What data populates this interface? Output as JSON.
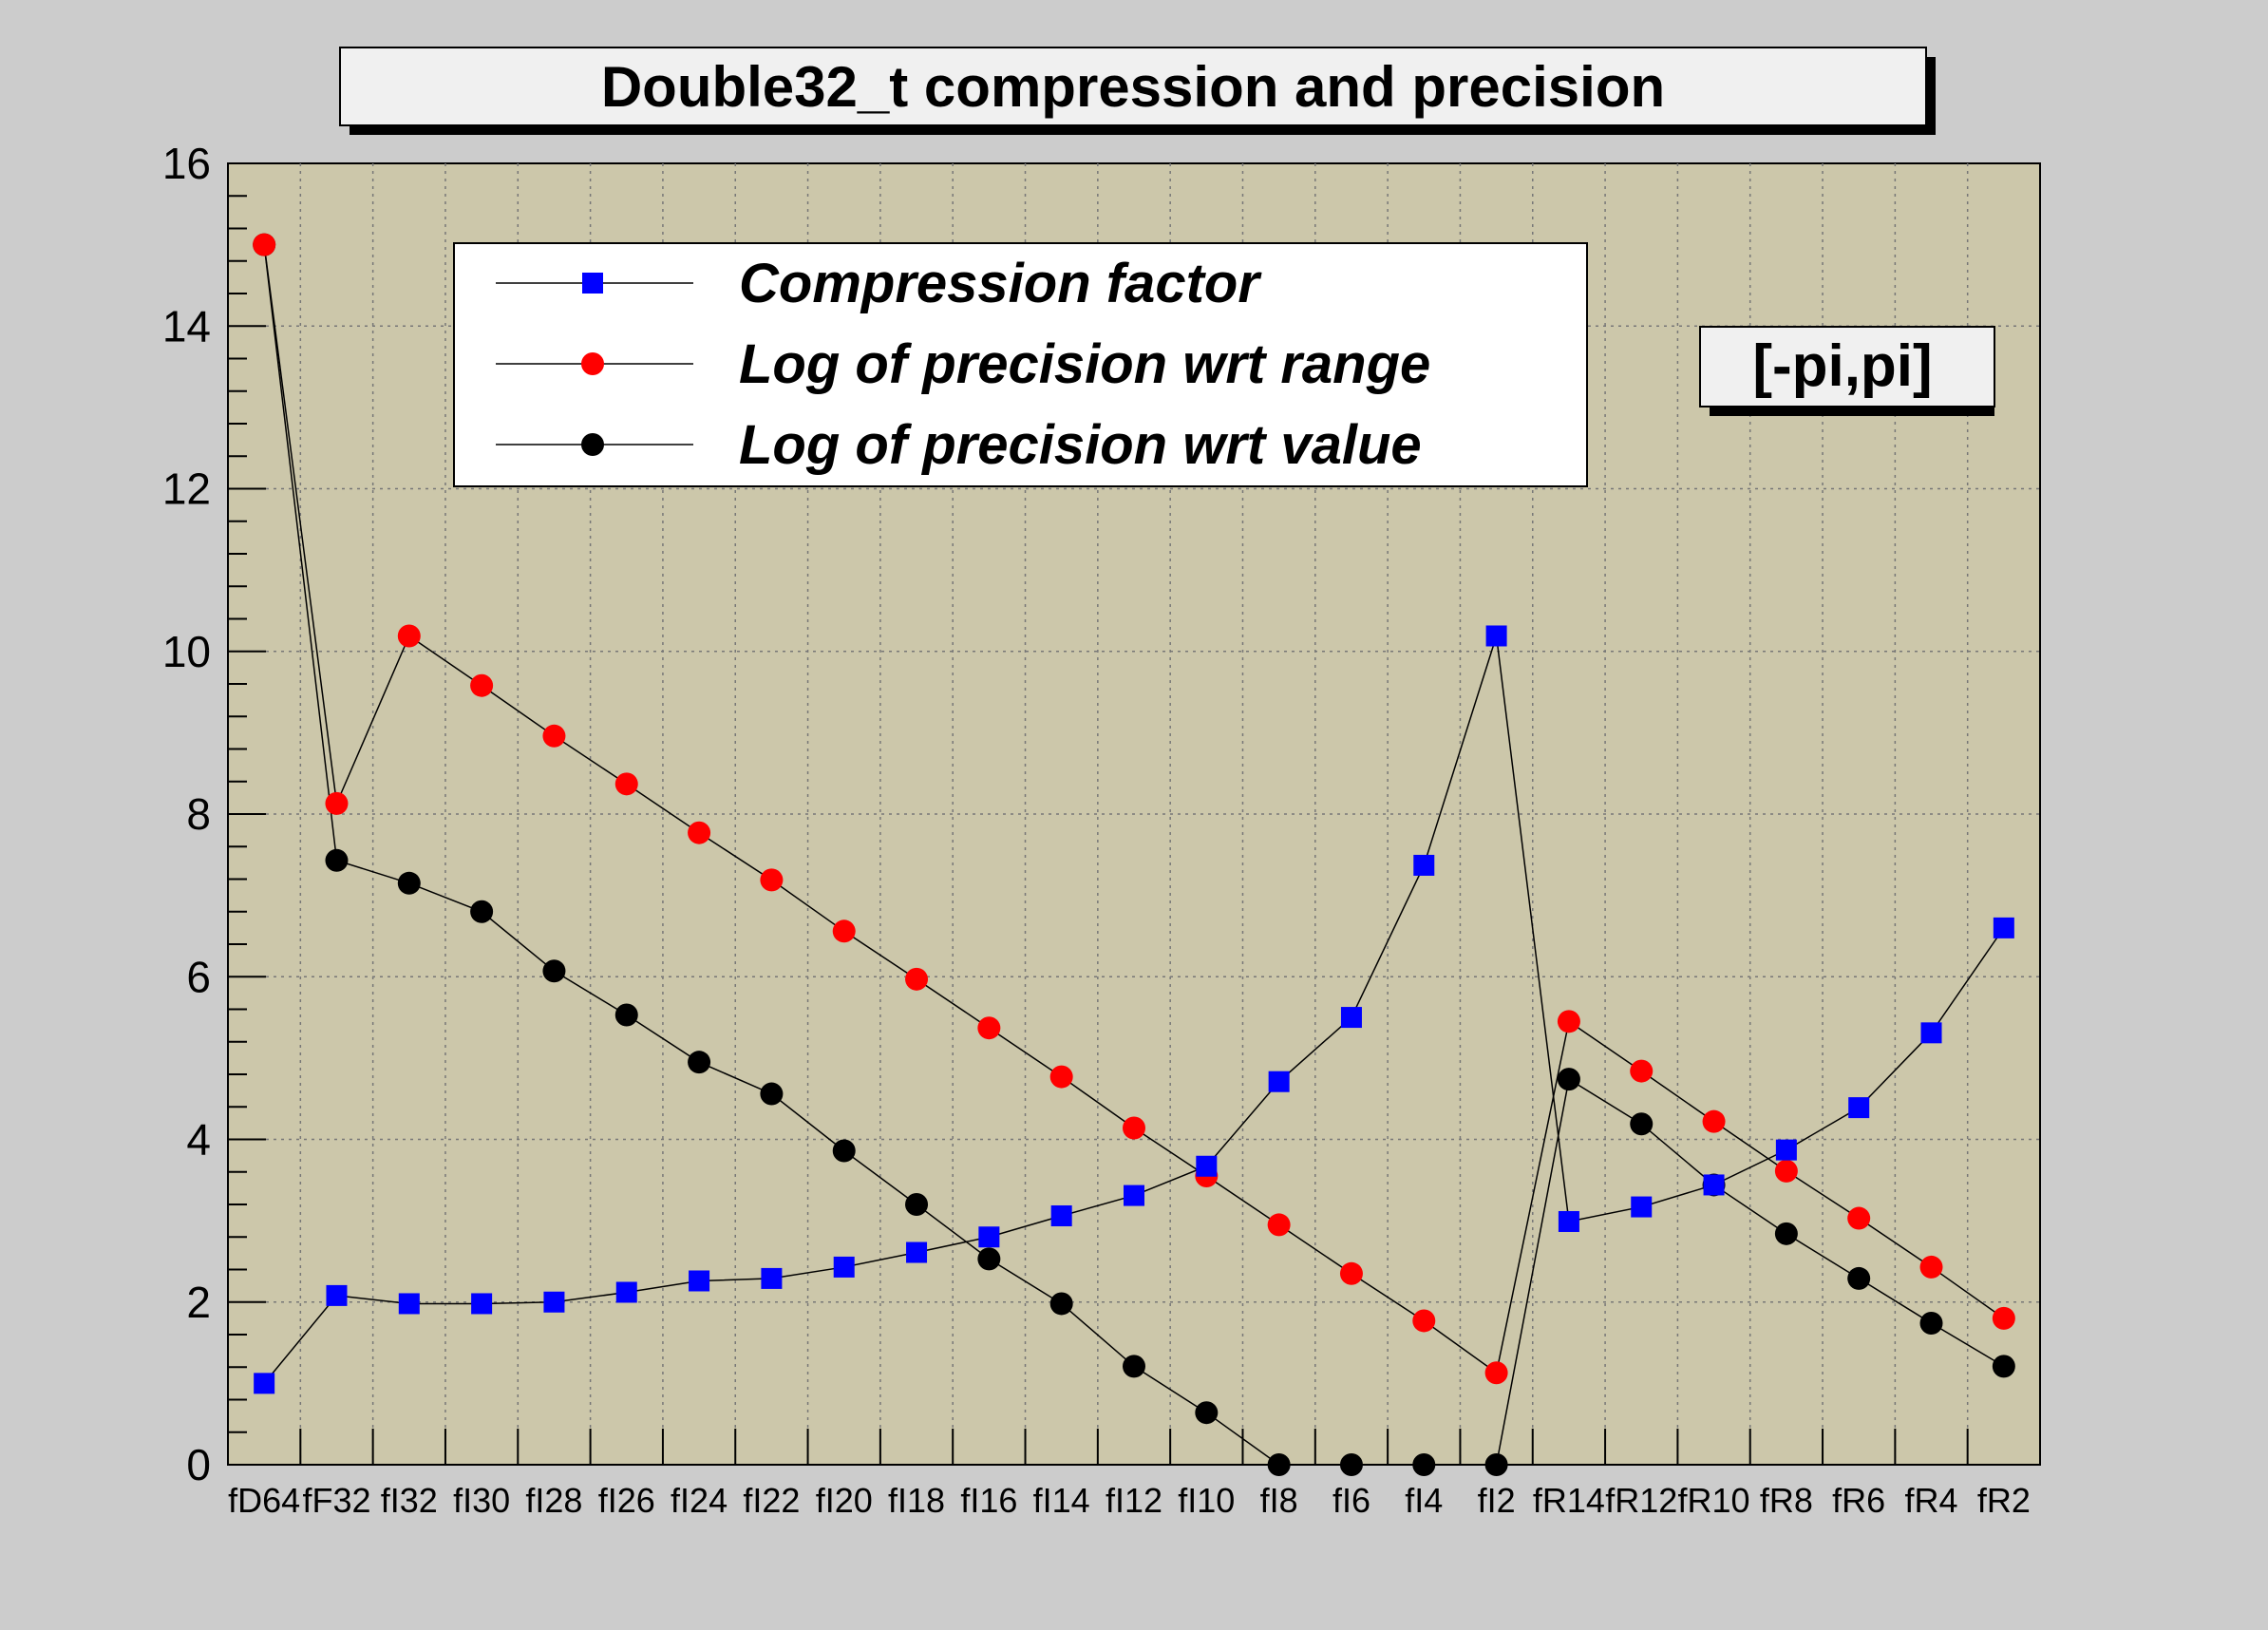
{
  "title": "Double32_t compression and precision",
  "range_label": "[-pi,pi]",
  "colors": {
    "canvas_bg": "#cccccc",
    "plot_bg": "#ccc7aa",
    "compression": "#0000ff",
    "range": "#ff0000",
    "value": "#000000"
  },
  "chart_data": {
    "type": "scatter",
    "title": "Double32_t compression and precision",
    "xlabel": "",
    "ylabel": "",
    "ylim": [
      0,
      16
    ],
    "y_ticks": [
      "0",
      "2",
      "4",
      "6",
      "8",
      "10",
      "12",
      "14",
      "16"
    ],
    "grid": true,
    "legend_position": "top-left",
    "categories": [
      "fD64",
      "fF32",
      "fI32",
      "fI30",
      "fI28",
      "fI26",
      "fI24",
      "fI22",
      "fI20",
      "fI18",
      "fI16",
      "fI14",
      "fI12",
      "fI10",
      "fI8",
      "fI6",
      "fI4",
      "fI2",
      "fR14",
      "fR12",
      "fR10",
      "fR8",
      "fR6",
      "fR4",
      "fR2"
    ],
    "series": [
      {
        "name": "Compression factor",
        "marker": "square",
        "color": "#0000ff",
        "values": [
          1.0,
          2.08,
          1.98,
          1.98,
          2.0,
          2.12,
          2.26,
          2.29,
          2.43,
          2.61,
          2.8,
          3.06,
          3.31,
          3.67,
          4.71,
          5.5,
          7.37,
          10.19,
          2.99,
          3.17,
          3.44,
          3.87,
          4.39,
          5.31,
          6.6
        ]
      },
      {
        "name": "Log of precision wrt range",
        "marker": "circle",
        "color": "#ff0000",
        "values": [
          15.0,
          8.13,
          10.19,
          9.58,
          8.96,
          8.37,
          7.77,
          7.19,
          6.56,
          5.97,
          5.37,
          4.77,
          4.14,
          3.55,
          2.95,
          2.35,
          1.77,
          1.13,
          5.45,
          4.84,
          4.22,
          3.61,
          3.03,
          2.43,
          1.8
        ]
      },
      {
        "name": "Log of precision wrt value",
        "marker": "circle",
        "color": "#000000",
        "values": [
          15.0,
          7.43,
          7.15,
          6.8,
          6.07,
          5.53,
          4.95,
          4.56,
          3.86,
          3.2,
          2.53,
          1.98,
          1.21,
          0.64,
          0.0,
          0.0,
          0.0,
          0.0,
          4.74,
          4.19,
          3.44,
          2.84,
          2.29,
          1.74,
          1.21
        ]
      }
    ]
  }
}
